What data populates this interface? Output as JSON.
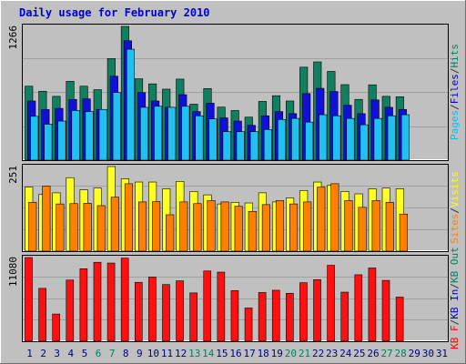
{
  "chart_data": [
    {
      "type": "bar",
      "title": "Daily usage for February 2010",
      "panel": "top",
      "ymax_label": "1266",
      "legend": [
        {
          "text": "Pages",
          "color": "#00c0ff"
        },
        {
          "text": "Files",
          "color": "#0000d0"
        },
        {
          "text": "Hits",
          "color": "#008060"
        }
      ],
      "separator_color": "#303030",
      "x": [
        1,
        2,
        3,
        4,
        5,
        6,
        7,
        8,
        9,
        10,
        11,
        12,
        13,
        14,
        15,
        16,
        17,
        18,
        19,
        20,
        21,
        22,
        23,
        24,
        25,
        26,
        27,
        28
      ],
      "series": [
        {
          "name": "Hits",
          "color": "#128060",
          "values": [
            700,
            652,
            604,
            746,
            700,
            667,
            962,
            1266,
            770,
            722,
            672,
            767,
            530,
            678,
            502,
            470,
            407,
            556,
            610,
            560,
            880,
            930,
            840,
            715,
            575,
            713,
            604,
            600
          ]
        },
        {
          "name": "Files",
          "color": "#1010d8",
          "values": [
            560,
            480,
            490,
            575,
            580,
            480,
            795,
            1130,
            640,
            560,
            500,
            620,
            460,
            540,
            400,
            370,
            330,
            420,
            460,
            440,
            630,
            680,
            650,
            520,
            440,
            570,
            500,
            480
          ]
        },
        {
          "name": "Pages",
          "color": "#20c0f0",
          "values": [
            415,
            340,
            370,
            470,
            460,
            480,
            640,
            1050,
            500,
            510,
            500,
            510,
            420,
            390,
            270,
            270,
            270,
            290,
            385,
            395,
            360,
            430,
            420,
            395,
            335,
            395,
            420,
            430
          ]
        }
      ]
    },
    {
      "type": "bar",
      "panel": "middle",
      "ymax_label": "251",
      "legend": [
        {
          "text": "Sites",
          "color": "#ff8000"
        },
        {
          "text": "Visits",
          "color": "#ffff00"
        }
      ],
      "separator_color": "#303030",
      "x": [
        1,
        2,
        3,
        4,
        5,
        6,
        7,
        8,
        9,
        10,
        11,
        12,
        13,
        14,
        15,
        16,
        17,
        18,
        19,
        20,
        21,
        22,
        23,
        24,
        25,
        26,
        27,
        28
      ],
      "series": [
        {
          "name": "Visits",
          "color": "#ffff20",
          "values": [
            190,
            168,
            173,
            218,
            182,
            187,
            251,
            215,
            205,
            205,
            185,
            207,
            177,
            167,
            140,
            145,
            143,
            173,
            146,
            158,
            180,
            205,
            195,
            177,
            170,
            185,
            187,
            185
          ]
        },
        {
          "name": "Sites",
          "color": "#ff8000",
          "values": [
            145,
            193,
            140,
            141,
            142,
            135,
            160,
            200,
            146,
            147,
            108,
            146,
            141,
            150,
            146,
            133,
            118,
            138,
            150,
            140,
            146,
            190,
            200,
            150,
            130,
            150,
            145,
            110
          ]
        }
      ]
    },
    {
      "type": "bar",
      "panel": "bottom",
      "ymax_label": "11080",
      "legend": [
        {
          "text": "KB F",
          "color": "#ff0000"
        },
        {
          "text": "KB In",
          "color": "#0000d0"
        },
        {
          "text": "KB Out",
          "color": "#008060"
        }
      ],
      "separator_color": "#303030",
      "x": [
        1,
        2,
        3,
        4,
        5,
        6,
        7,
        8,
        9,
        10,
        11,
        12,
        13,
        14,
        15,
        16,
        17,
        18,
        19,
        20,
        21,
        22,
        23,
        24,
        25,
        26,
        27,
        28
      ],
      "series": [
        {
          "name": "KB F",
          "color": "#ff1010",
          "values": [
            11080,
            7000,
            3600,
            8100,
            9600,
            10450,
            10350,
            11000,
            7800,
            8500,
            7500,
            8000,
            6400,
            9300,
            9150,
            6700,
            4400,
            6450,
            6750,
            6350,
            7750,
            8150,
            10050,
            6500,
            8800,
            9700,
            8050,
            5850
          ]
        }
      ]
    }
  ],
  "x_axis": {
    "labels": [
      "1",
      "2",
      "3",
      "4",
      "5",
      "6",
      "7",
      "8",
      "9",
      "10",
      "11",
      "12",
      "13",
      "14",
      "15",
      "16",
      "17",
      "18",
      "19",
      "20",
      "21",
      "22",
      "23",
      "24",
      "25",
      "26",
      "27",
      "28",
      "29",
      "30",
      "31"
    ],
    "weekend_days": [
      6,
      7,
      13,
      14,
      20,
      21,
      27,
      28
    ],
    "weekday_color": "#000080",
    "weekend_color": "#008060"
  },
  "colors": {
    "background": "#c0c0c0",
    "title": "#0000d0",
    "grid": "#a0a0a0"
  }
}
